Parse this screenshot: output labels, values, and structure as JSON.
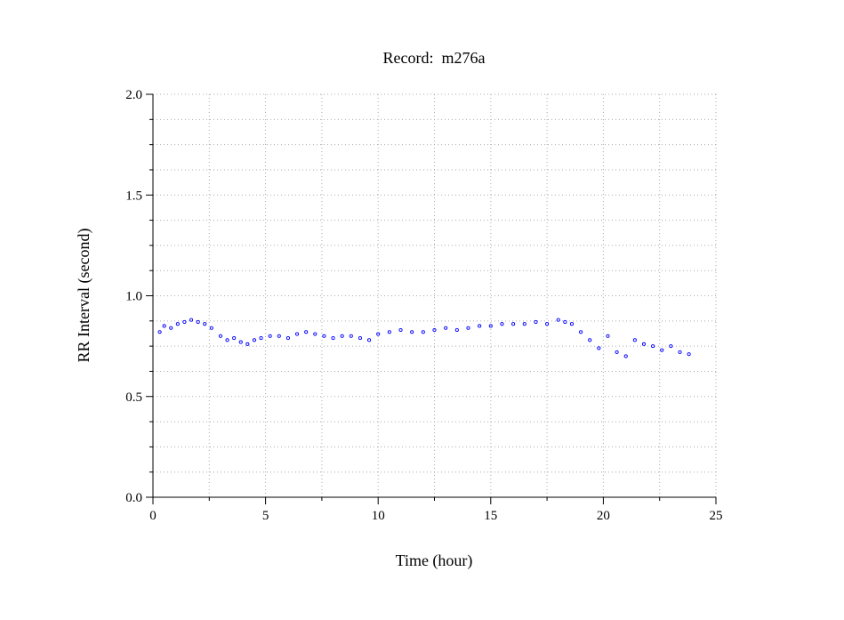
{
  "chart_data": {
    "type": "scatter",
    "title": "Record:  m276a",
    "xlabel": "Time (hour)",
    "ylabel": "RR Interval (second)",
    "xlim": [
      0,
      25
    ],
    "ylim": [
      0.0,
      2.0
    ],
    "x_ticks": [
      0,
      5,
      10,
      15,
      20,
      25
    ],
    "x_tick_labels": [
      "0",
      "5",
      "10",
      "15",
      "20",
      "25"
    ],
    "y_ticks": [
      0.0,
      0.5,
      1.0,
      1.5,
      2.0
    ],
    "y_tick_labels": [
      "0.0",
      "0.5",
      "1.0",
      "1.5",
      "2.0"
    ],
    "grid": true,
    "legend": "none",
    "marker": "open-circle",
    "colors": {
      "points": "#0000ff",
      "grid": "#aaaaaa",
      "axis": "#000000",
      "background": "#ffffff"
    },
    "series": [
      {
        "x": [
          0.3,
          0.5,
          0.8,
          1.1,
          1.4,
          1.7,
          2.0,
          2.3,
          2.6,
          3.0,
          3.3,
          3.6,
          3.9,
          4.2,
          4.5,
          4.8,
          5.2,
          5.6,
          6.0,
          6.4,
          6.8,
          7.2,
          7.6,
          8.0,
          8.4,
          8.8,
          9.2,
          9.6,
          10.0,
          10.5,
          11.0,
          11.5,
          12.0,
          12.5,
          13.0,
          13.5,
          14.0,
          14.5,
          15.0,
          15.5,
          16.0,
          16.5,
          17.0,
          17.5,
          18.0,
          18.3,
          18.6,
          19.0,
          19.4,
          19.8,
          20.2,
          20.6,
          21.0,
          21.4,
          21.8,
          22.2,
          22.6,
          23.0,
          23.4,
          23.8
        ],
        "y": [
          0.82,
          0.85,
          0.84,
          0.86,
          0.87,
          0.88,
          0.87,
          0.86,
          0.84,
          0.8,
          0.78,
          0.79,
          0.77,
          0.76,
          0.78,
          0.79,
          0.8,
          0.8,
          0.79,
          0.81,
          0.82,
          0.81,
          0.8,
          0.79,
          0.8,
          0.8,
          0.79,
          0.78,
          0.81,
          0.82,
          0.83,
          0.82,
          0.82,
          0.83,
          0.84,
          0.83,
          0.84,
          0.85,
          0.85,
          0.86,
          0.86,
          0.86,
          0.87,
          0.86,
          0.88,
          0.87,
          0.86,
          0.82,
          0.78,
          0.74,
          0.8,
          0.72,
          0.7,
          0.78,
          0.76,
          0.75,
          0.73,
          0.75,
          0.72,
          0.71
        ]
      }
    ]
  }
}
